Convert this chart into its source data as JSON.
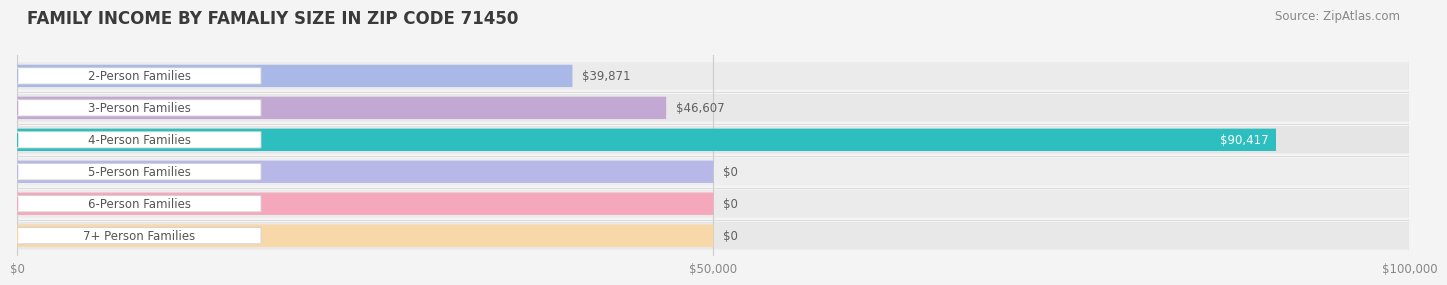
{
  "title": "FAMILY INCOME BY FAMALIY SIZE IN ZIP CODE 71450",
  "source": "Source: ZipAtlas.com",
  "categories": [
    "2-Person Families",
    "3-Person Families",
    "4-Person Families",
    "5-Person Families",
    "6-Person Families",
    "7+ Person Families"
  ],
  "values": [
    39871,
    46607,
    90417,
    0,
    0,
    0
  ],
  "bar_colors": [
    "#aab8e8",
    "#c4a8d4",
    "#2dbfbf",
    "#b8b8e8",
    "#f5a8bc",
    "#f8d8a8"
  ],
  "label_texts": [
    "$39,871",
    "$46,607",
    "$90,417",
    "$0",
    "$0",
    "$0"
  ],
  "value_label_color_inside": "#ffffff",
  "value_label_color_outside": "#606060",
  "xmax": 100000,
  "xticks": [
    0,
    50000,
    100000
  ],
  "xtick_labels": [
    "$0",
    "$50,000",
    "$100,000"
  ],
  "background_color": "#f4f4f4",
  "row_bg_colors": [
    "#ebebeb",
    "#e8e8e8",
    "#e5e5e5",
    "#eeeeee",
    "#ebebeb",
    "#e8e8e8"
  ],
  "bar_bg_color": "#e4e4e4",
  "title_color": "#3a3a3a",
  "source_color": "#888888",
  "label_box_bg": "#ffffff",
  "label_box_edge": "#d0d0d0",
  "label_text_color": "#555555",
  "bar_height": 0.7,
  "title_fontsize": 12,
  "label_fontsize": 8.5,
  "tick_fontsize": 8.5,
  "source_fontsize": 8.5,
  "zero_bar_width": 50000
}
